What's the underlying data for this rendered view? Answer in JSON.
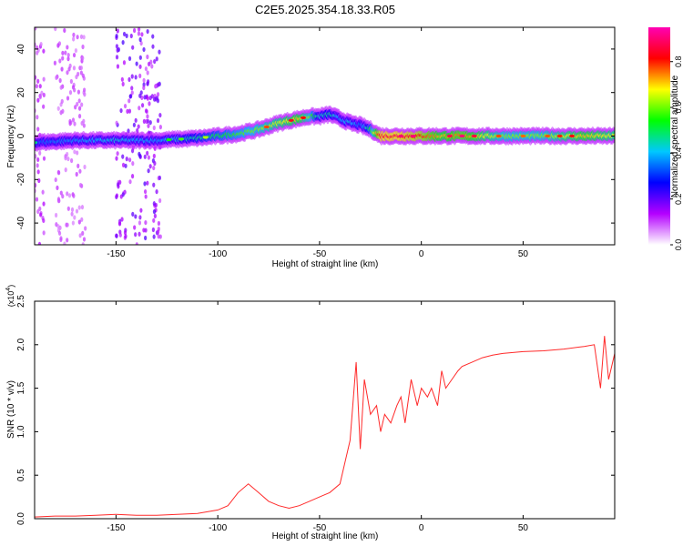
{
  "title": "C2E5.2025.354.18.33.R05",
  "chart_data": [
    {
      "type": "heatmap",
      "name": "spectrogram",
      "xlabel": "Height of straight line (km)",
      "ylabel": "Frequency (Hz)",
      "xlim": [
        -190,
        95
      ],
      "ylim": [
        -50,
        50
      ],
      "xticks": [
        -150,
        -100,
        -50,
        0,
        50
      ],
      "xtick_labels": [
        "-150",
        "-100",
        "-50",
        "0",
        "50"
      ],
      "yticks": [
        -40,
        -20,
        0,
        20,
        40
      ],
      "ytick_labels": [
        "-40",
        "-20",
        "0",
        "20",
        "40"
      ],
      "grid": false,
      "ridge": {
        "x": [
          -190,
          -170,
          -150,
          -130,
          -110,
          -100,
          -90,
          -80,
          -70,
          -60,
          -55,
          -50,
          -45,
          -40,
          -35,
          -30,
          -25,
          -20,
          -10,
          0,
          10,
          20,
          40,
          60,
          80,
          95
        ],
        "freq": [
          -3,
          -2,
          -2,
          -2,
          -1,
          0,
          1,
          3,
          6,
          8,
          9,
          9,
          10,
          8,
          6,
          5,
          3,
          0,
          0,
          0,
          0,
          0,
          0,
          0,
          0,
          0
        ],
        "amplitude": [
          0.35,
          0.4,
          0.45,
          0.4,
          0.5,
          0.55,
          0.6,
          0.65,
          0.7,
          0.75,
          0.65,
          0.45,
          0.5,
          0.4,
          0.45,
          0.35,
          0.55,
          0.9,
          0.9,
          0.85,
          0.75,
          0.8,
          0.65,
          0.65,
          0.75,
          0.7
        ]
      },
      "noise_columns": [
        {
          "x_range": [
            -190,
            -185
          ],
          "freq_range": [
            -50,
            50
          ],
          "amplitude": 0.08
        },
        {
          "x_range": [
            -180,
            -165
          ],
          "freq_range": [
            -50,
            50
          ],
          "amplitude": 0.06
        },
        {
          "x_range": [
            -150,
            -128
          ],
          "freq_range": [
            -50,
            50
          ],
          "amplitude": 0.15
        }
      ],
      "colorbar": {
        "label": "Normalized spectral amplitude",
        "range": [
          0,
          0.95
        ],
        "ticks": [
          0.0,
          0.2,
          0.4,
          0.6,
          0.8
        ],
        "tick_labels": [
          "0.0",
          "0.2",
          "0.4",
          "0.6",
          "0.8"
        ],
        "colors": [
          "#ffffff",
          "#b400ff",
          "#0000ff",
          "#00c8ff",
          "#00ff00",
          "#ffff00",
          "#ff0000",
          "#ff00b4"
        ]
      }
    },
    {
      "type": "line",
      "name": "snr",
      "xlabel": "Height of straight line (km)",
      "ylabel": "SNR (10 * v/v)",
      "exponent": "(x10",
      "exponent_power": "4",
      "exponent_close": ")",
      "xlim": [
        -190,
        95
      ],
      "ylim": [
        0,
        2.5
      ],
      "xticks": [
        -150,
        -100,
        -50,
        0,
        50
      ],
      "xtick_labels": [
        "-150",
        "-100",
        "-50",
        "0",
        "50"
      ],
      "yticks": [
        0.0,
        0.5,
        1.0,
        1.5,
        2.0,
        2.5
      ],
      "ytick_labels": [
        "0.0",
        "0.5",
        "1.0",
        "1.5",
        "2.0",
        "2.5"
      ],
      "color": "#ff2a2a",
      "x": [
        -190,
        -180,
        -170,
        -160,
        -150,
        -140,
        -130,
        -120,
        -110,
        -100,
        -95,
        -90,
        -85,
        -80,
        -75,
        -70,
        -65,
        -60,
        -55,
        -50,
        -45,
        -40,
        -35,
        -32,
        -30,
        -28,
        -25,
        -22,
        -20,
        -18,
        -15,
        -12,
        -10,
        -8,
        -5,
        -2,
        0,
        3,
        5,
        8,
        10,
        12,
        15,
        18,
        20,
        25,
        30,
        35,
        40,
        50,
        60,
        70,
        80,
        85,
        88,
        90,
        92,
        95
      ],
      "y": [
        0.02,
        0.03,
        0.03,
        0.04,
        0.05,
        0.04,
        0.04,
        0.05,
        0.06,
        0.1,
        0.15,
        0.3,
        0.4,
        0.3,
        0.2,
        0.15,
        0.12,
        0.15,
        0.2,
        0.25,
        0.3,
        0.4,
        0.9,
        1.8,
        0.8,
        1.6,
        1.2,
        1.3,
        1.0,
        1.2,
        1.1,
        1.3,
        1.4,
        1.1,
        1.6,
        1.3,
        1.5,
        1.4,
        1.5,
        1.3,
        1.7,
        1.5,
        1.6,
        1.7,
        1.75,
        1.8,
        1.85,
        1.88,
        1.9,
        1.92,
        1.93,
        1.95,
        1.98,
        2.0,
        1.5,
        2.1,
        1.6,
        1.9
      ]
    }
  ]
}
